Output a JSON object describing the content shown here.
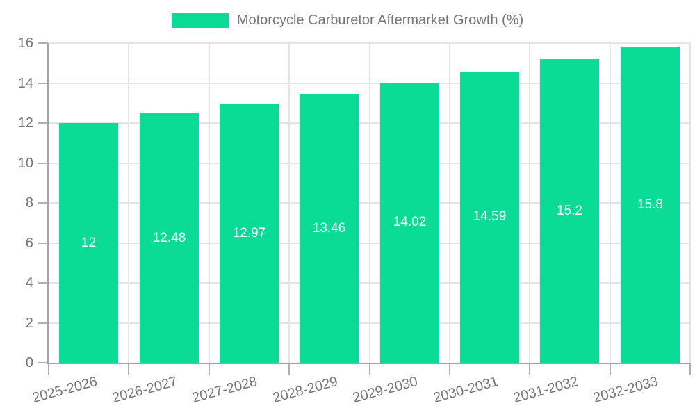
{
  "legend": {
    "label": "Motorcycle Carburetor Aftermarket Growth (%)"
  },
  "colors": {
    "bar": "#0ADC95",
    "grid": "#e4e4e4",
    "axis": "#a3a3a3",
    "tick": "#b0b0b0",
    "axis_text": "#757575",
    "value_text": "#ffffff"
  },
  "chart_data": {
    "type": "bar",
    "title": "",
    "legend": "Motorcycle Carburetor Aftermarket Growth (%)",
    "legend_position": "top-center",
    "categories": [
      "2025-2026",
      "2026-2027",
      "2027-2028",
      "2028-2029",
      "2029-2030",
      "2030-2031",
      "2031-2032",
      "2032-2033"
    ],
    "values": [
      12,
      12.48,
      12.97,
      13.46,
      14.02,
      14.59,
      15.2,
      15.8
    ],
    "value_labels": [
      "12",
      "12.48",
      "12.97",
      "13.46",
      "14.02",
      "14.59",
      "15.2",
      "15.8"
    ],
    "xlabel": "",
    "ylabel": "",
    "ylim": [
      0,
      16
    ],
    "yticks": [
      0,
      2,
      4,
      6,
      8,
      10,
      12,
      14,
      16
    ],
    "grid": true
  }
}
